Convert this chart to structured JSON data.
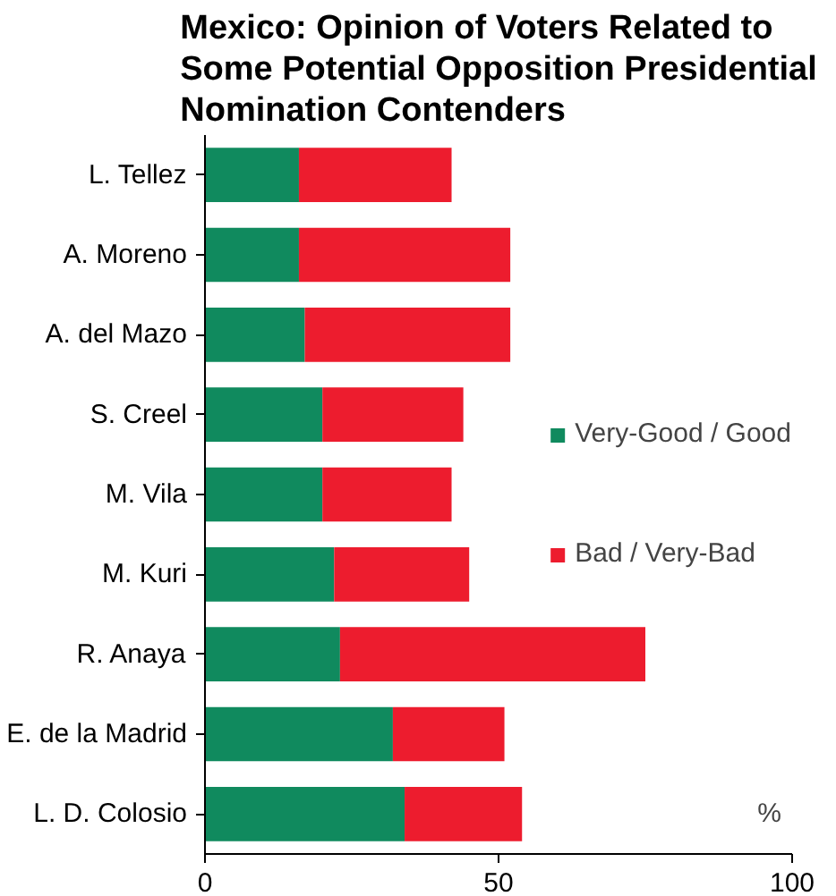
{
  "chart_data": {
    "type": "bar",
    "orientation": "horizontal",
    "stacked": true,
    "title": "Mexico: Opinion of Voters Related to Some Potential Opposition Presidential Nomination Contenders",
    "categories": [
      "L. Tellez",
      "A. Moreno",
      "A. del Mazo",
      "S. Creel",
      "M. Vila",
      "M. Kuri",
      "R. Anaya",
      "E. de la Madrid",
      "L. D. Colosio"
    ],
    "series": [
      {
        "name": "Very-Good / Good",
        "color": "#108a5e",
        "values": [
          16,
          16,
          17,
          20,
          20,
          22,
          23,
          32,
          34
        ]
      },
      {
        "name": "Bad / Very-Bad",
        "color": "#ed1c2e",
        "values": [
          26,
          36,
          35,
          24,
          22,
          23,
          52,
          19,
          20
        ]
      }
    ],
    "xlim": [
      0,
      100
    ],
    "xticks": [
      0,
      50,
      100
    ],
    "grid": false,
    "legend": "right",
    "annotations": [
      "%"
    ]
  }
}
